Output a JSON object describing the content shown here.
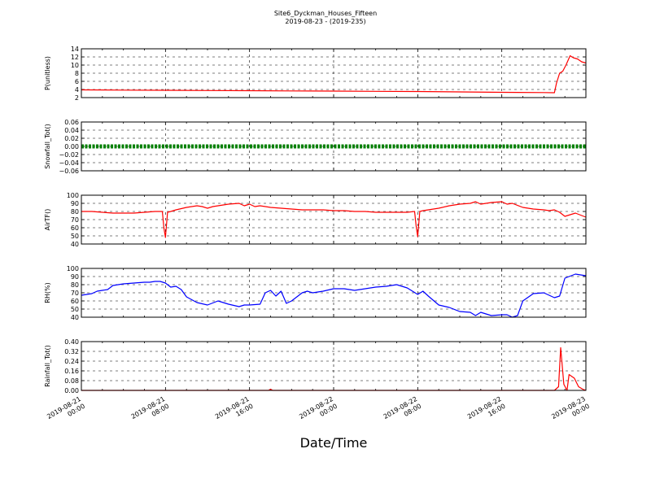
{
  "title": {
    "line1": "Site6_Dyckman_Houses_Fifteen",
    "line2": "2019-08-23 - (2019-235)"
  },
  "xlabel": "Date/Time",
  "colors": {
    "red": "#ff0000",
    "green": "#008000",
    "blue": "#0000ff",
    "grid": "#000000"
  },
  "chart_data": [
    {
      "type": "line",
      "ylabel": "P(unitless)",
      "ylim": [
        2,
        14
      ],
      "yticks": [
        "2",
        "4",
        "6",
        "8",
        "10",
        "12",
        "14"
      ],
      "xlim": [
        0,
        48
      ],
      "xticks": [
        0,
        8,
        16,
        24,
        32,
        40,
        48
      ],
      "grid": true,
      "series": [
        {
          "color": "#ff0000",
          "x": [
            0,
            4,
            8,
            12,
            16,
            20,
            24,
            28,
            32,
            36,
            40,
            44,
            45,
            45.2,
            45.5,
            45.8,
            46.1,
            46.5,
            46.8,
            47.2,
            47.6,
            48
          ],
          "y": [
            3.9,
            3.85,
            3.8,
            3.75,
            3.7,
            3.65,
            3.6,
            3.55,
            3.5,
            3.4,
            3.3,
            3.25,
            3.2,
            5.5,
            8.0,
            8.5,
            10.0,
            12.3,
            11.8,
            11.5,
            10.8,
            10.5
          ]
        }
      ]
    },
    {
      "type": "line",
      "ylabel": "Snowfall_Tot()",
      "ylim": [
        -0.06,
        0.06
      ],
      "yticks": [
        "−0.06",
        "−0.04",
        "−0.02",
        "0.00",
        "0.02",
        "0.04",
        "0.06"
      ],
      "xlim": [
        0,
        48
      ],
      "xticks": [
        0,
        8,
        16,
        24,
        32,
        40,
        48
      ],
      "grid": true,
      "series": [
        {
          "color": "#008000",
          "marker": "dot",
          "x": [
            0,
            48
          ],
          "y": [
            0,
            0
          ]
        }
      ]
    },
    {
      "type": "line",
      "ylabel": "AirTF()",
      "ylim": [
        40,
        100
      ],
      "yticks": [
        "40",
        "50",
        "60",
        "70",
        "80",
        "90",
        "100"
      ],
      "xlim": [
        0,
        48
      ],
      "xticks": [
        0,
        8,
        16,
        24,
        32,
        40,
        48
      ],
      "grid": true,
      "series": [
        {
          "color": "#ff0000",
          "x": [
            0,
            1,
            2,
            3,
            4,
            5,
            6,
            7,
            7.7,
            7.85,
            8.0,
            8.2,
            8.5,
            9,
            10,
            11,
            11.5,
            12,
            12.5,
            13,
            14,
            15,
            15.5,
            16,
            16.5,
            17,
            18,
            19,
            20,
            21,
            22,
            23,
            24,
            25,
            26,
            27,
            28,
            29,
            31,
            31.7,
            31.85,
            32.0,
            32.2,
            32.5,
            33,
            34,
            35,
            36,
            37,
            37.5,
            38,
            39,
            40,
            40.5,
            41,
            42,
            43,
            44,
            44.5,
            45,
            45.5,
            46,
            47,
            48
          ],
          "y": [
            80,
            80,
            79,
            78,
            78,
            78,
            79,
            80,
            80,
            60,
            48,
            79,
            80,
            82,
            85,
            87,
            86,
            84,
            86,
            87,
            89,
            90,
            87,
            89,
            86,
            87,
            85,
            84,
            83,
            82,
            82,
            82,
            81,
            81,
            80,
            80,
            79,
            79,
            79,
            80,
            62,
            49,
            80,
            81,
            82,
            84,
            87,
            89,
            90,
            92,
            89,
            91,
            92,
            89,
            90,
            85,
            83,
            82,
            81,
            82,
            79,
            74,
            78,
            73
          ]
        }
      ]
    },
    {
      "type": "line",
      "ylabel": "RH(%)",
      "ylim": [
        40,
        100
      ],
      "yticks": [
        "40",
        "50",
        "60",
        "70",
        "80",
        "90",
        "100"
      ],
      "xlim": [
        0,
        48
      ],
      "xticks": [
        0,
        8,
        16,
        24,
        32,
        40,
        48
      ],
      "grid": true,
      "series": [
        {
          "color": "#0000ff",
          "x": [
            0,
            1,
            1.5,
            2,
            2.5,
            3,
            4,
            5,
            6,
            6.5,
            7,
            7.5,
            8,
            8.5,
            9,
            9.5,
            10,
            11,
            12,
            13,
            14,
            15,
            15.5,
            16,
            17,
            17.5,
            18,
            18.5,
            19,
            19.5,
            20,
            21,
            21.5,
            22,
            23,
            24,
            25,
            26,
            27,
            28,
            29,
            30,
            31,
            32,
            32.5,
            33,
            34,
            35,
            36,
            37,
            37.5,
            38,
            39,
            40,
            40.5,
            41,
            41.5,
            42,
            43,
            44,
            45,
            45.5,
            46,
            47,
            48
          ],
          "y": [
            67,
            69,
            72,
            73,
            74,
            79,
            81,
            82,
            83,
            83,
            84,
            84,
            82,
            77,
            78,
            74,
            65,
            58,
            55,
            60,
            56,
            53,
            55,
            55,
            56,
            70,
            73,
            66,
            72,
            57,
            60,
            70,
            72,
            70,
            72,
            75,
            75,
            73,
            75,
            77,
            78,
            80,
            76,
            68,
            72,
            66,
            55,
            52,
            47,
            46,
            42,
            46,
            42,
            43,
            43,
            40,
            42,
            60,
            69,
            70,
            64,
            66,
            88,
            93,
            91
          ]
        }
      ]
    },
    {
      "type": "line",
      "ylabel": "Rainfall_Tot()",
      "ylim": [
        0,
        0.4
      ],
      "yticks": [
        "0.00",
        "0.08",
        "0.16",
        "0.24",
        "0.32",
        "0.40"
      ],
      "xlim": [
        0,
        48
      ],
      "xticks": [
        0,
        8,
        16,
        24,
        32,
        40,
        48
      ],
      "xticklabels": [
        [
          "2019-08-21",
          "00:00"
        ],
        [
          "2019-08-21",
          "08:00"
        ],
        [
          "2019-08-21",
          "16:00"
        ],
        [
          "2019-08-22",
          "00:00"
        ],
        [
          "2019-08-22",
          "08:00"
        ],
        [
          "2019-08-22",
          "16:00"
        ],
        [
          "2019-08-23",
          "00:00"
        ]
      ],
      "grid": true,
      "series": [
        {
          "color": "#ff0000",
          "x": [
            0,
            17.8,
            18.0,
            18.2,
            45.0,
            45.4,
            45.6,
            45.9,
            46.2,
            46.4,
            46.9,
            47.3,
            47.7,
            48
          ],
          "y": [
            0,
            0,
            0.01,
            0,
            0,
            0.03,
            0.35,
            0.05,
            0,
            0.13,
            0.1,
            0.03,
            0.01,
            0
          ]
        }
      ]
    }
  ]
}
